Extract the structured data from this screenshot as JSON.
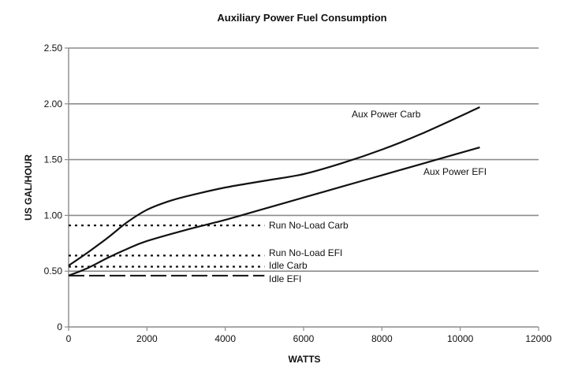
{
  "chart_data": {
    "type": "line",
    "title": "Auxiliary Power Fuel Consumption",
    "xlabel": "WATTS",
    "ylabel": "US GAL/HOUR",
    "xlim": [
      0,
      12000
    ],
    "ylim": [
      0,
      2.5
    ],
    "xticks": [
      0,
      2000,
      4000,
      6000,
      8000,
      10000,
      12000
    ],
    "xtick_labels": [
      "0",
      "2000",
      "4000",
      "6000",
      "8000",
      "10000",
      "12000"
    ],
    "yticks": [
      0,
      0.5,
      1.0,
      1.5,
      2.0,
      2.5
    ],
    "ytick_labels": [
      "0",
      "0.50",
      "1.00",
      "1.50",
      "2.00",
      "2.50"
    ],
    "grid": "horizontal",
    "series": [
      {
        "name": "Aux Power Carb",
        "style": "solid",
        "x": [
          0,
          500,
          1000,
          1500,
          2000,
          2500,
          3000,
          4000,
          5000,
          6000,
          7000,
          8000,
          9000,
          10500
        ],
        "y": [
          0.55,
          0.67,
          0.8,
          0.94,
          1.05,
          1.12,
          1.17,
          1.25,
          1.31,
          1.37,
          1.47,
          1.59,
          1.73,
          1.97
        ]
      },
      {
        "name": "Aux Power EFI",
        "style": "solid",
        "x": [
          0,
          500,
          1000,
          1500,
          2000,
          3000,
          4000,
          5000,
          6000,
          7000,
          8000,
          9000,
          10500
        ],
        "y": [
          0.46,
          0.53,
          0.62,
          0.7,
          0.77,
          0.87,
          0.96,
          1.06,
          1.16,
          1.26,
          1.36,
          1.46,
          1.61
        ]
      },
      {
        "name": "Run No-Load Carb",
        "style": "dotted",
        "x": [
          0,
          5000
        ],
        "y": [
          0.91,
          0.91
        ]
      },
      {
        "name": "Run No-Load EFI",
        "style": "dotted",
        "x": [
          0,
          5000
        ],
        "y": [
          0.64,
          0.64
        ]
      },
      {
        "name": "Idle Carb",
        "style": "dotted",
        "x": [
          0,
          5000
        ],
        "y": [
          0.54,
          0.54
        ]
      },
      {
        "name": "Idle EFI",
        "style": "dashed",
        "x": [
          0,
          5000
        ],
        "y": [
          0.46,
          0.46
        ]
      }
    ],
    "annotations": [
      {
        "text": "Aux Power Carb",
        "series": "Aux Power Carb"
      },
      {
        "text": "Aux Power EFI",
        "series": "Aux Power EFI"
      },
      {
        "text": "Run No-Load Carb",
        "series": "Run No-Load Carb"
      },
      {
        "text": "Run No-Load EFI",
        "series": "Run No-Load EFI"
      },
      {
        "text": "Idle Carb",
        "series": "Idle Carb"
      },
      {
        "text": "Idle EFI",
        "series": "Idle EFI"
      }
    ]
  }
}
